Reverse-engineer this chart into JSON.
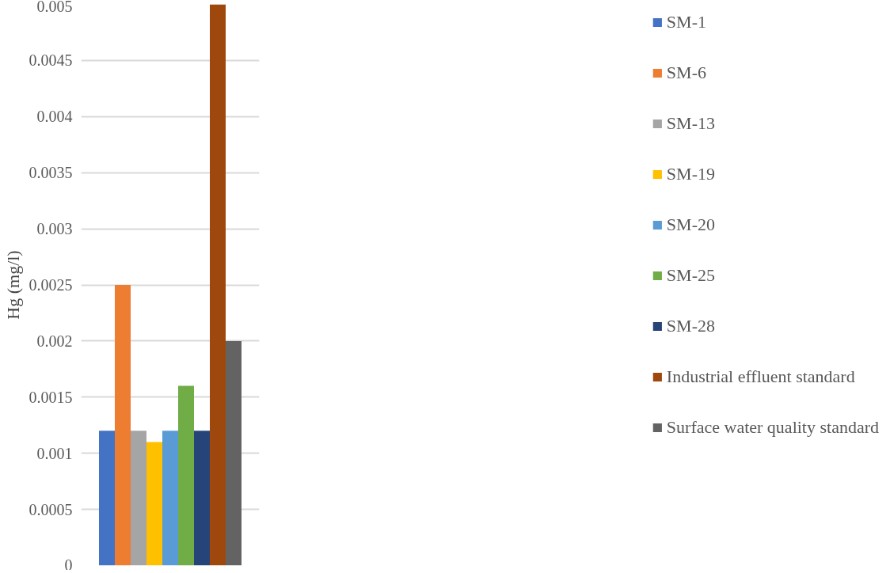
{
  "chart_data": {
    "type": "bar",
    "ylabel": "Hg (mg/l)",
    "categories": [
      null
    ],
    "series": [
      {
        "name": "SM-1",
        "color": "#4472c4",
        "values": [
          0.0012
        ]
      },
      {
        "name": "SM-6",
        "color": "#ed7d31",
        "values": [
          0.0025
        ]
      },
      {
        "name": "SM-13",
        "color": "#a5a5a5",
        "values": [
          0.0012
        ]
      },
      {
        "name": "SM-19",
        "color": "#ffc000",
        "values": [
          0.0011
        ]
      },
      {
        "name": "SM-20",
        "color": "#5b9bd5",
        "values": [
          0.0012
        ]
      },
      {
        "name": "SM-25",
        "color": "#70ad47",
        "values": [
          0.0016
        ]
      },
      {
        "name": "SM-28",
        "color": "#264478",
        "values": [
          0.0012
        ]
      },
      {
        "name": "Industrial effluent standard",
        "color": "#9e480e",
        "values": [
          0.005
        ]
      },
      {
        "name": "Surface water quality standard",
        "color": "#636363",
        "values": [
          0.002
        ]
      }
    ],
    "ylim": [
      0,
      0.005
    ],
    "yticks": [
      0,
      0.0005,
      0.001,
      0.0015,
      0.002,
      0.0025,
      0.003,
      0.0035,
      0.004,
      0.0045,
      0.005
    ],
    "grid": "y",
    "legend": "right",
    "tick_labels": "y"
  }
}
